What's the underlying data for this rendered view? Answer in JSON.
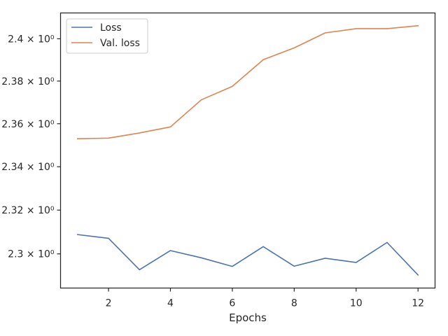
{
  "chart_data": {
    "type": "line",
    "title": "",
    "xlabel": "Epochs",
    "ylabel": "",
    "yscale": "log",
    "x": [
      1,
      2,
      3,
      4,
      5,
      6,
      7,
      8,
      9,
      10,
      11,
      12
    ],
    "series": [
      {
        "name": "Loss",
        "color": "#4c72b0",
        "values": [
          2.3088,
          2.3071,
          2.2928,
          2.3015,
          2.2982,
          2.2943,
          2.3033,
          2.2944,
          2.298,
          2.2961,
          2.3052,
          2.2904
        ]
      },
      {
        "name": "Val. loss",
        "color": "#dd8452",
        "values": [
          2.353,
          2.3533,
          2.3557,
          2.3585,
          2.3712,
          2.3775,
          2.3901,
          2.3957,
          2.4028,
          2.4048,
          2.4048,
          2.4062
        ]
      }
    ],
    "xlim": [
      0.45,
      12.55
    ],
    "ylim": [
      2.2845,
      2.4123
    ],
    "xticks": [
      2,
      4,
      6,
      8,
      10,
      12
    ],
    "xtick_labels": [
      "2",
      "4",
      "6",
      "8",
      "10",
      "12"
    ],
    "yticks": [
      2.3,
      2.32,
      2.34,
      2.36,
      2.38,
      2.4
    ],
    "ytick_labels": [
      "2.3 × 10⁰",
      "2.32 × 10⁰",
      "2.34 × 10⁰",
      "2.36 × 10⁰",
      "2.38 × 10⁰",
      "2.4 × 10⁰"
    ],
    "grid": false,
    "legend_position": "top-left"
  }
}
